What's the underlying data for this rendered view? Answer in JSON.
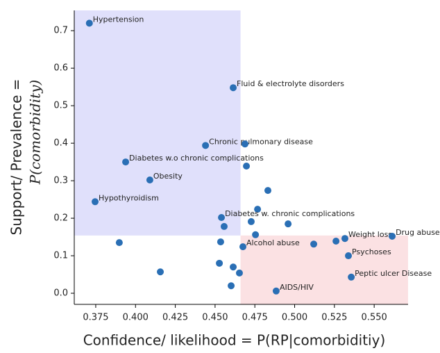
{
  "chart_data": {
    "type": "scatter",
    "xlabel": "Confidence/ likelihood = P(RP|comorbiditiy)",
    "ylabel": [
      "Support/ Prevalence =",
      "P(comorbidity)"
    ],
    "color": "#2a6fb5",
    "x": [
      0.371,
      0.4614,
      0.444,
      0.4688,
      0.3938,
      0.4697,
      0.409,
      0.4832,
      0.3746,
      0.4767,
      0.454,
      0.4727,
      0.4959,
      0.4557,
      0.4754,
      0.3898,
      0.4535,
      0.4675,
      0.512,
      0.526,
      0.5316,
      0.5613,
      0.5338,
      0.4527,
      0.4614,
      0.4653,
      0.4156,
      0.5356,
      0.4601,
      0.4884
    ],
    "values": [
      0.72,
      0.548,
      0.394,
      0.398,
      0.35,
      0.339,
      0.302,
      0.274,
      0.244,
      0.224,
      0.202,
      0.191,
      0.185,
      0.178,
      0.156,
      0.135,
      0.137,
      0.124,
      0.131,
      0.139,
      0.146,
      0.152,
      0.1,
      0.08,
      0.07,
      0.054,
      0.057,
      0.043,
      0.02,
      0.006
    ],
    "labels": [
      "Hypertension",
      "Fluid & electrolyte disorders",
      "Chronic pulmonary disease",
      null,
      "Diabetes w.o chronic complications",
      null,
      "Obesity",
      null,
      "Hypothyroidism",
      null,
      "Diabetes w. chronic complications",
      null,
      null,
      null,
      null,
      null,
      null,
      "Alcohol abuse",
      null,
      null,
      "Weight loss",
      "Drug abuse",
      "Psychoses",
      null,
      null,
      null,
      null,
      "Peptic ulcer Disease",
      null,
      "AIDS/HIV"
    ],
    "regions": [
      {
        "xlim": [
          0.3615,
          0.466
        ],
        "ylim": [
          0.154,
          0.754
        ],
        "color": "#e0e0fb"
      },
      {
        "xlim": [
          0.466,
          0.5713
        ],
        "ylim": [
          -0.0296,
          0.154
        ],
        "color": "#fbe1e3"
      }
    ],
    "xlim": [
      0.3615,
      0.5713
    ],
    "ylim": [
      -0.0296,
      0.754
    ],
    "xticks": [
      0.375,
      {
        "value": 0.4,
        "label": "0.400"
      },
      0.425,
      {
        "value": 0.45,
        "label": "0.450"
      },
      0.475,
      {
        "value": 0.5,
        "label": "0.500"
      },
      0.525,
      {
        "value": 0.55,
        "label": "0.550"
      }
    ],
    "yticks": [
      {
        "value": 0,
        "label": "0.0"
      },
      0.1,
      0.2,
      0.3,
      0.4,
      0.5,
      0.6,
      0.7
    ]
  }
}
